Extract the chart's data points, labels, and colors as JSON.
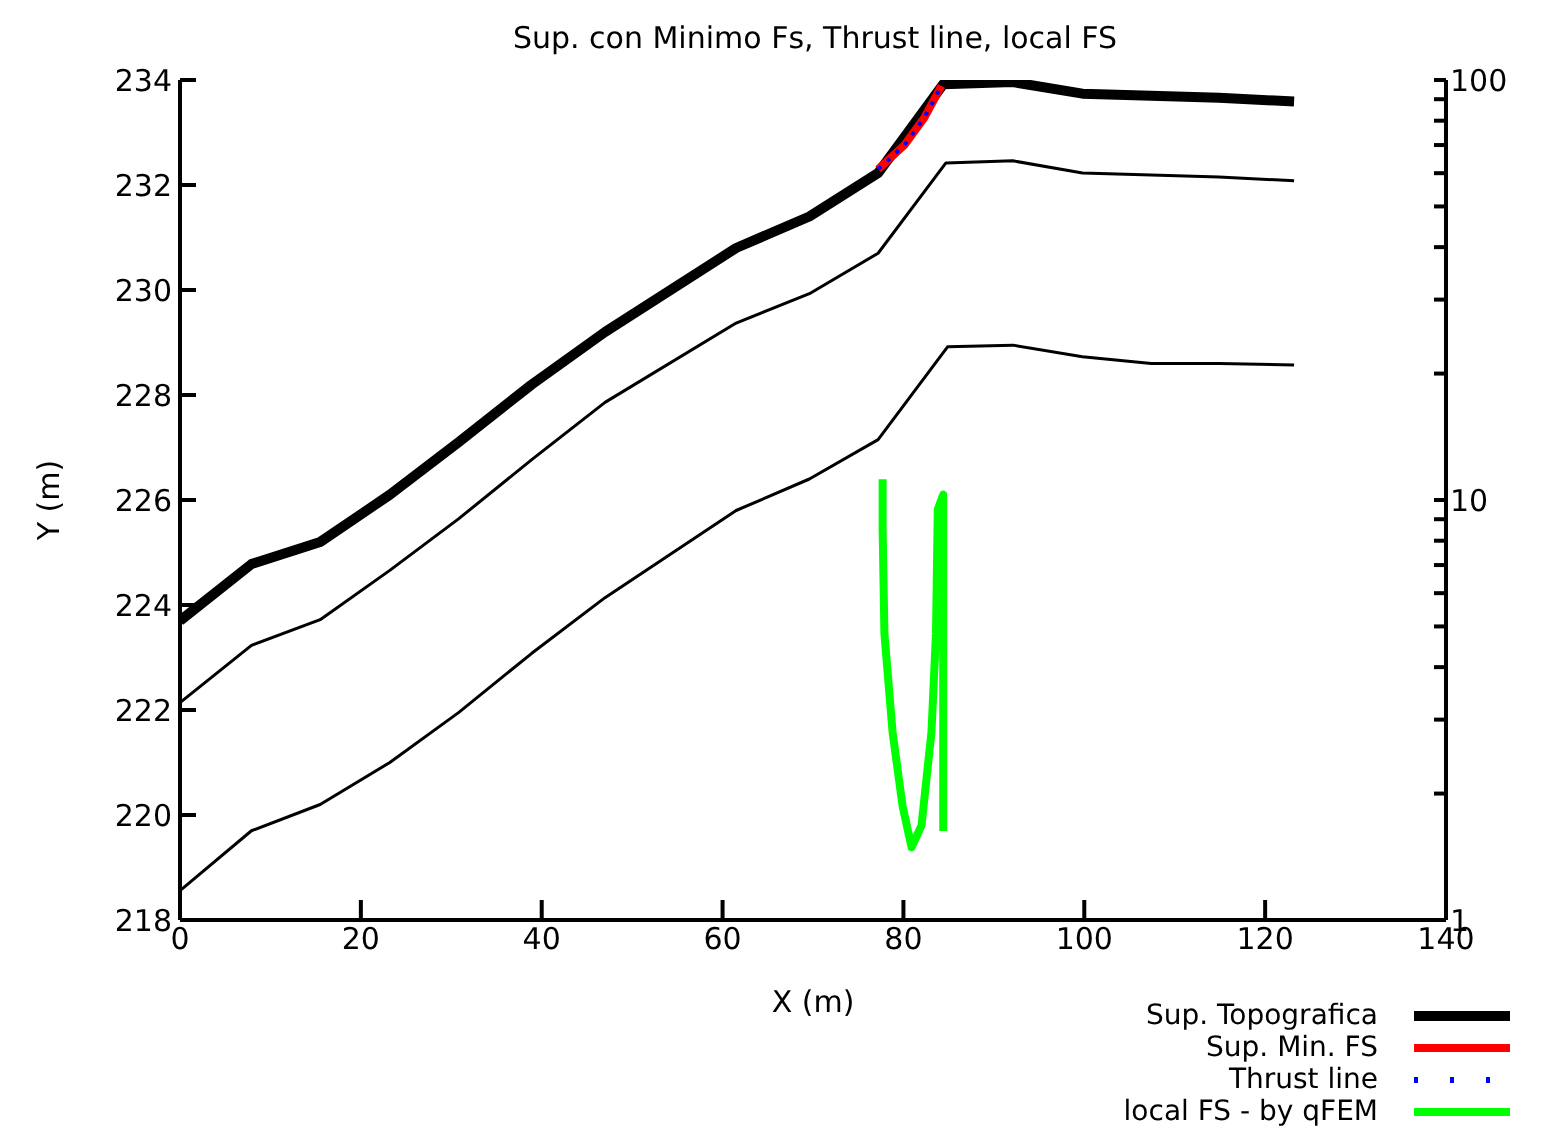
{
  "chart_data": {
    "type": "line",
    "title": "Sup. con Minimo Fs, Thrust line, local FS",
    "xlabel": "X (m)",
    "ylabel": "Y (m)",
    "xlim": [
      0,
      140
    ],
    "xticks": [
      0,
      20,
      40,
      60,
      80,
      100,
      120,
      140
    ],
    "ylim": [
      218,
      234
    ],
    "yticks": [
      218,
      220,
      222,
      224,
      226,
      228,
      230,
      232,
      234
    ],
    "y2lim": [
      1,
      100
    ],
    "y2ticks": [
      1,
      {
        "value": 2,
        "label": null
      },
      {
        "value": 3,
        "label": null
      },
      {
        "value": 4,
        "label": null
      },
      {
        "value": 5,
        "label": null
      },
      {
        "value": 6,
        "label": null
      },
      {
        "value": 7,
        "label": null
      },
      {
        "value": 8,
        "label": null
      },
      {
        "value": 9,
        "label": null
      },
      10,
      {
        "value": 20,
        "label": null
      },
      {
        "value": 30,
        "label": null
      },
      {
        "value": 40,
        "label": null
      },
      {
        "value": 50,
        "label": null
      },
      {
        "value": 60,
        "label": null
      },
      {
        "value": 70,
        "label": null
      },
      {
        "value": 80,
        "label": null
      },
      {
        "value": 90,
        "label": null
      },
      100
    ],
    "log": "y2",
    "legend": "bottom right",
    "marker": "none",
    "series": [
      {
        "name": "Sup. Topografica",
        "color": "#000000",
        "x": [
          0,
          7.9,
          15.5,
          23.2,
          30.8,
          38.9,
          47.0,
          61.5,
          69.6,
          77.2,
          84.4,
          92.1,
          99.8,
          107.4,
          114.9,
          123.2
        ],
        "values": [
          223.7,
          224.78,
          225.2,
          226.1,
          227.1,
          228.2,
          229.2,
          230.8,
          231.4,
          232.23,
          233.92,
          233.96,
          233.74,
          233.7,
          233.66,
          233.59
        ]
      },
      {
        "color": "#000000",
        "x": [
          0,
          7.9,
          15.5,
          23.2,
          30.8,
          38.9,
          47.0,
          61.5,
          69.6,
          77.2,
          84.7,
          92.1,
          99.8,
          107.4,
          114.9,
          123.2
        ],
        "values": [
          222.14,
          223.23,
          223.72,
          224.66,
          225.64,
          226.77,
          227.86,
          229.37,
          229.93,
          230.7,
          232.42,
          232.46,
          232.23,
          232.19,
          232.15,
          232.08
        ]
      },
      {
        "color": "#000000",
        "x": [
          0,
          7.9,
          15.5,
          23.2,
          30.8,
          38.9,
          47.0,
          61.5,
          69.6,
          77.2,
          84.9,
          92.1,
          99.8,
          107.4,
          114.9,
          123.2
        ],
        "values": [
          218.56,
          219.7,
          220.2,
          221.0,
          221.95,
          223.08,
          224.14,
          225.8,
          226.4,
          227.15,
          228.92,
          228.95,
          228.73,
          228.6,
          228.6,
          228.57
        ]
      },
      {
        "name": "Sup. Min. FS",
        "color": "#ff0000",
        "x": [
          77.2,
          80.1,
          82.3,
          84.2
        ],
        "values": [
          232.3,
          232.76,
          233.28,
          233.89
        ]
      },
      {
        "name": "Thrust line",
        "color": "#0000ff",
        "line_style": "dotted",
        "x": [
          77.2,
          80.1,
          82.3,
          84.2
        ],
        "values": [
          232.3,
          232.76,
          233.28,
          233.89
        ]
      },
      {
        "name": "local FS - by qFEM",
        "color": "#00ff00",
        "axis": "y2",
        "x": [
          77.7,
          77.7,
          77.9,
          78.8,
          79.9,
          80.9,
          82.0,
          83.1,
          83.6,
          83.8,
          84.4,
          84.4
        ],
        "values": [
          11.2,
          8.5,
          4.8,
          2.8,
          1.87,
          1.49,
          1.68,
          2.8,
          4.8,
          9.5,
          10.3,
          1.63
        ]
      }
    ]
  }
}
